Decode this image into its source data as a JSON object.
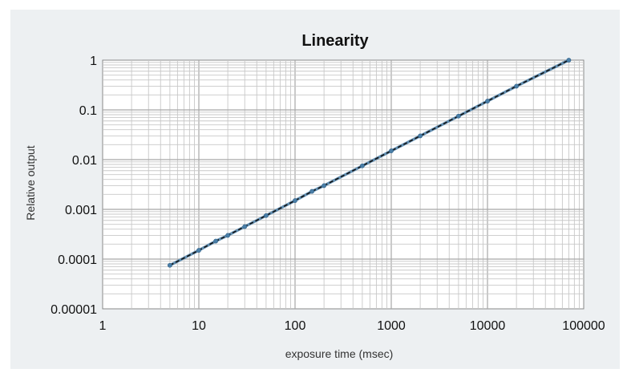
{
  "chart_data": {
    "type": "line",
    "title": "Linearity",
    "xlabel": "exposure time (msec)",
    "ylabel": "Relative output",
    "x_scale": "log",
    "y_scale": "log",
    "xlim": [
      1,
      100000
    ],
    "ylim": [
      1e-05,
      1
    ],
    "x_ticks": [
      "1",
      "10",
      "100",
      "1000",
      "10000",
      "100000"
    ],
    "y_ticks": [
      "0.00001",
      "0.0001",
      "0.001",
      "0.01",
      "0.1",
      "1"
    ],
    "grid": true,
    "legend": "none",
    "series": [
      {
        "color": "#4a7fa8",
        "marker": "circle",
        "line_style": "dashed",
        "line_color": "#111111",
        "points": [
          {
            "x": 5,
            "y": 7.5e-05
          },
          {
            "x": 10,
            "y": 0.00015
          },
          {
            "x": 15,
            "y": 0.00023
          },
          {
            "x": 20,
            "y": 0.0003
          },
          {
            "x": 30,
            "y": 0.00045
          },
          {
            "x": 50,
            "y": 0.00075
          },
          {
            "x": 100,
            "y": 0.0015
          },
          {
            "x": 150,
            "y": 0.0023
          },
          {
            "x": 200,
            "y": 0.003
          },
          {
            "x": 500,
            "y": 0.0075
          },
          {
            "x": 1000,
            "y": 0.015
          },
          {
            "x": 2000,
            "y": 0.03
          },
          {
            "x": 5000,
            "y": 0.075
          },
          {
            "x": 10000,
            "y": 0.15
          },
          {
            "x": 20000,
            "y": 0.3
          },
          {
            "x": 70000,
            "y": 1
          }
        ]
      }
    ]
  }
}
